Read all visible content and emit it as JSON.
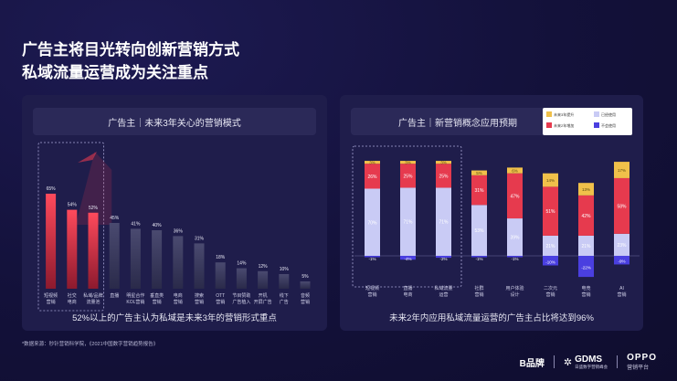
{
  "title_line1": "广告主将目光转向创新营销方式",
  "title_line2": "私域流量运营成为关注重点",
  "footnote": "*数据来源：秒针营销科学院，《2021中国数字营销趋势报告》",
  "brands": {
    "b1": "B品牌",
    "b2": "GDMS",
    "b2_sub": "日盛数字营销峰会",
    "b3": "OPPO",
    "b3_sub": "营销平台"
  },
  "colors": {
    "red": "#e63a4e",
    "gray": "#3a3a5e",
    "light": "#c9cbf5",
    "yellow": "#f0c04a",
    "blue": "#4a3fe0"
  },
  "chart_data": [
    {
      "type": "bar",
      "title": "广告主｜未来3年关心的营销模式",
      "caption": "52%以上的广告主认为私域是未来3年的营销形式重点",
      "categories": [
        [
          "短视频",
          "营销"
        ],
        [
          "社交",
          "电商"
        ],
        [
          "私域/品牌",
          "流量池"
        ],
        [
          "直播"
        ],
        [
          "明星合作",
          "KOL营销"
        ],
        [
          "垂直类",
          "营销"
        ],
        [
          "电商",
          "营销"
        ],
        [
          "搜索",
          "营销"
        ],
        [
          "OTT",
          "营销"
        ],
        [
          "节目赞助",
          "广告植入"
        ],
        [
          "开机",
          "开屏广告"
        ],
        [
          "线下",
          "广告"
        ],
        [
          "音频",
          "营销"
        ]
      ],
      "values": [
        65,
        54,
        52,
        45,
        41,
        40,
        36,
        31,
        18,
        14,
        12,
        10,
        5
      ],
      "labels": [
        "65%",
        "54%",
        "52%",
        "45%",
        "41%",
        "40%",
        "36%",
        "31%",
        "18%",
        "14%",
        "12%",
        "10%",
        "5%"
      ],
      "highlighted": 3
    },
    {
      "type": "bar",
      "stacked": true,
      "title": "广告主｜新营销概念应用预期",
      "caption": "未来2年内应用私域流量运营的广告主占比将达到96%",
      "legend": [
        "未来3年提升",
        "已经使用",
        "未来2年增加",
        "不会使用"
      ],
      "categories": [
        [
          "短视频",
          "营销"
        ],
        [
          "直播",
          "电商"
        ],
        [
          "私域流量",
          "运营"
        ],
        [
          "社群",
          "营销"
        ],
        [
          "用户体验",
          "设计"
        ],
        [
          "二次元",
          "营销"
        ],
        [
          "电竞",
          "营销"
        ],
        [
          "AI",
          "营销"
        ]
      ],
      "series": [
        {
          "name": "已经使用",
          "values": [
            70,
            71,
            71,
            53,
            39,
            21,
            21,
            23
          ],
          "labels": [
            "70%",
            "71%",
            "71%",
            "53%",
            "39%",
            "21%",
            "21%",
            "23%"
          ]
        },
        {
          "name": "未来2年增加",
          "values": [
            26,
            25,
            25,
            31,
            47,
            51,
            42,
            58
          ],
          "labels": [
            "26%",
            "25%",
            "25%",
            "31%",
            "47%",
            "51%",
            "42%",
            "58%"
          ]
        },
        {
          "name": "未来3年提升",
          "values": [
            3,
            3,
            3,
            5,
            6,
            14,
            13,
            17
          ],
          "labels": [
            "3%",
            "3%",
            "3%",
            "5%",
            "6%",
            "14%",
            "13%",
            "17%"
          ]
        },
        {
          "name": "不会使用",
          "values": [
            -1,
            -4,
            -2,
            -1,
            -1,
            -10,
            -22,
            -9
          ],
          "labels": [
            "-1%",
            "-4%",
            "-2%",
            "-1%",
            "-1%",
            "-10%",
            "-22%",
            "-9%"
          ]
        }
      ],
      "highlighted": 3
    }
  ]
}
